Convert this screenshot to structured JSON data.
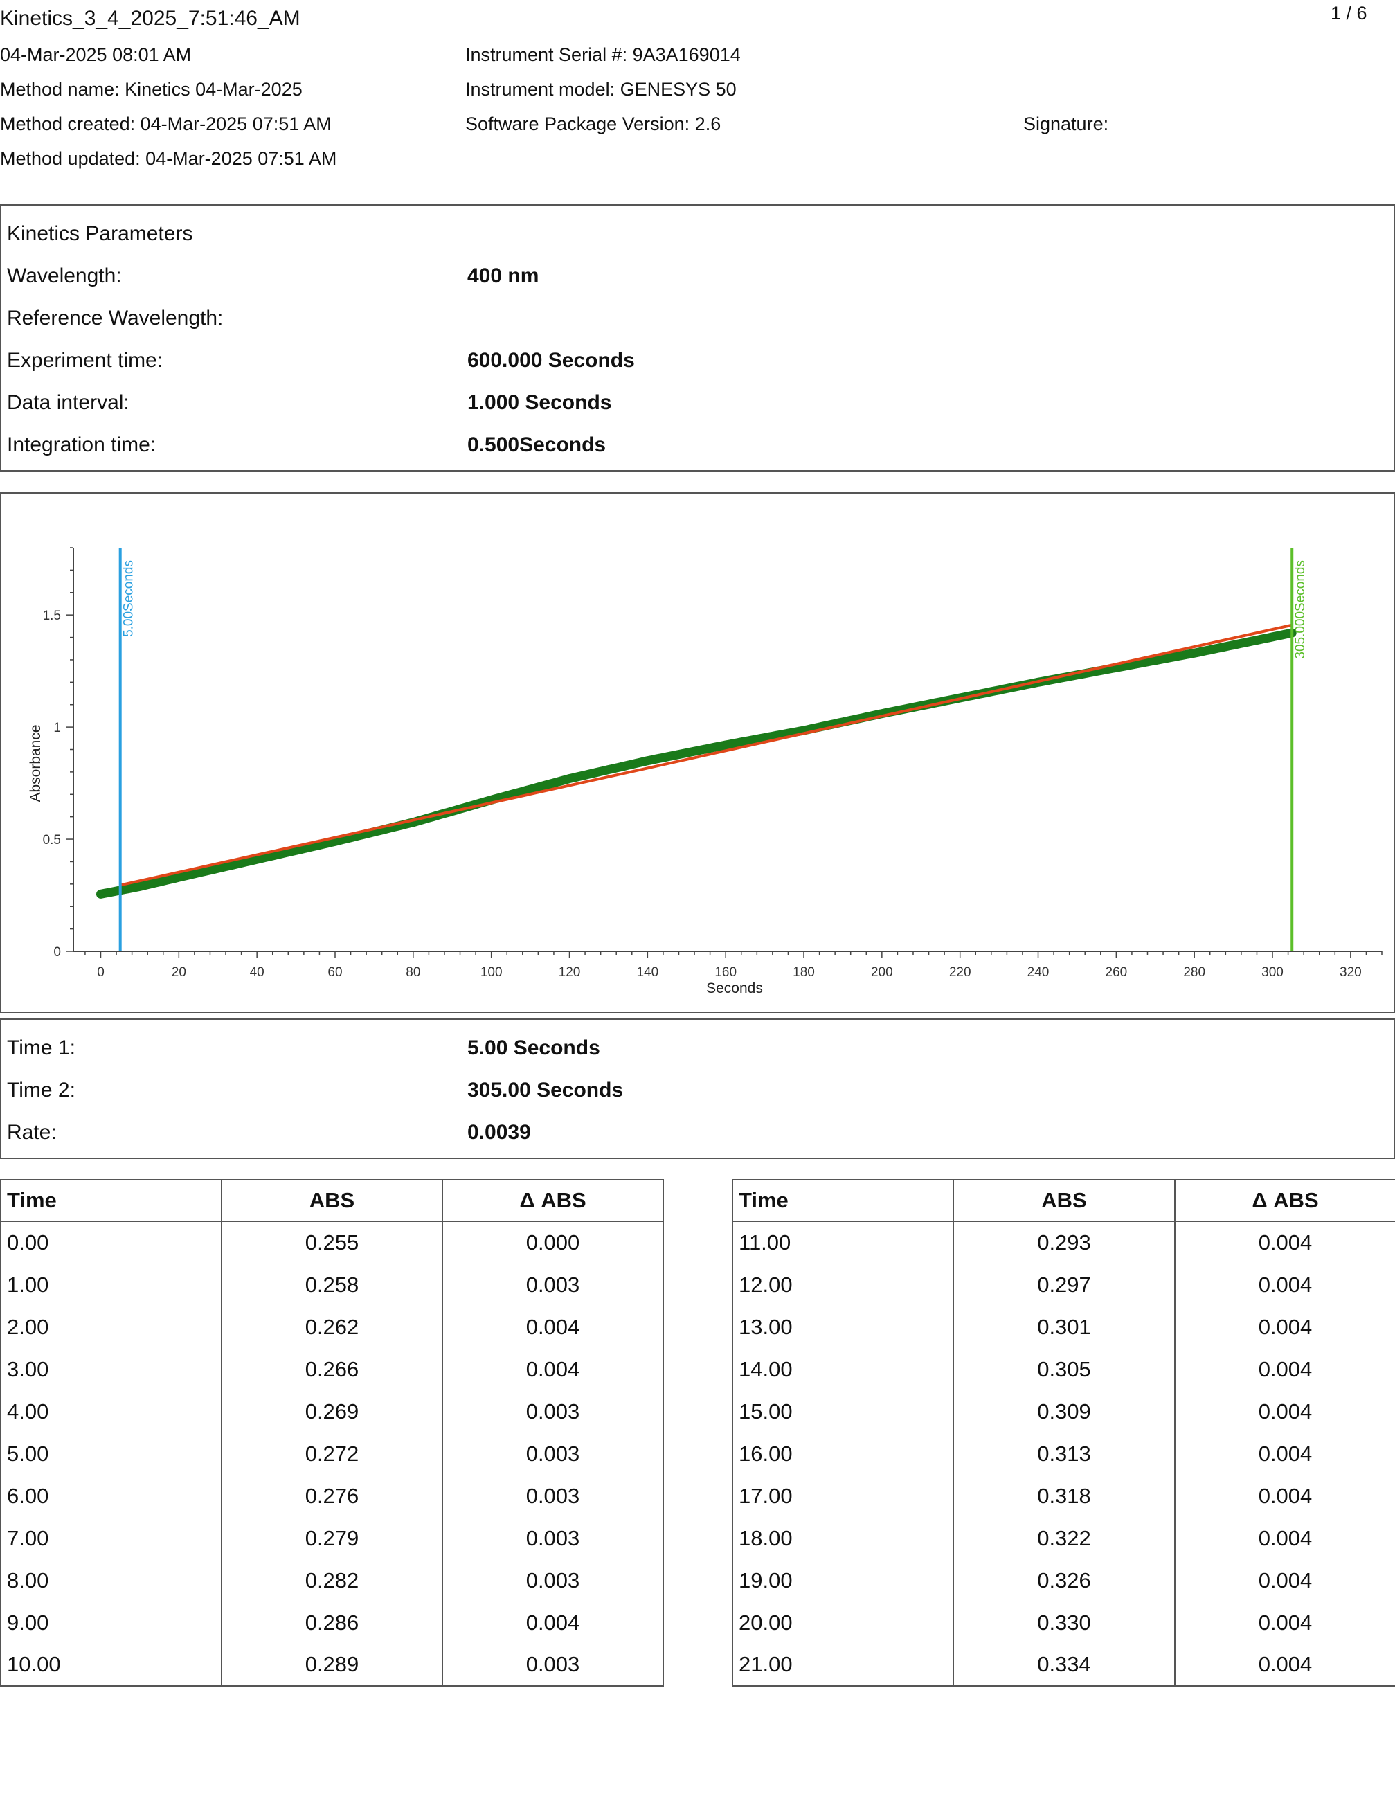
{
  "header": {
    "title": "Kinetics_3_4_2025_7:51:46_AM",
    "page_number": "1 / 6",
    "date": "04-Mar-2025 08:01 AM",
    "method_name": "Method name: Kinetics 04-Mar-2025",
    "method_created": "Method created: 04-Mar-2025 07:51 AM",
    "method_updated": "Method updated: 04-Mar-2025 07:51 AM",
    "instrument_serial": "Instrument Serial #: 9A3A169014",
    "instrument_model": "Instrument model: GENESYS 50",
    "software_version": "Software Package Version: 2.6",
    "signature": "Signature:"
  },
  "parameters": {
    "heading": "Kinetics Parameters",
    "wavelength_label": "Wavelength:",
    "wavelength_value": "400 nm",
    "reference_label": "Reference Wavelength:",
    "reference_value": "",
    "experiment_label": "Experiment time:",
    "experiment_value": "600.000 Seconds",
    "interval_label": "Data interval:",
    "interval_value": "1.000 Seconds",
    "integration_label": "Integration time:",
    "integration_value": "0.500Seconds"
  },
  "results": {
    "time1_label": "Time 1:",
    "time1_value": "5.00 Seconds",
    "time2_label": "Time 2:",
    "time2_value": "305.00 Seconds",
    "rate_label": "Rate:",
    "rate_value": "0.0039"
  },
  "chart_data": {
    "type": "scatter",
    "xlabel": "Seconds",
    "ylabel": "Absorbance",
    "xlim": [
      -7,
      328
    ],
    "ylim": [
      0,
      1.8
    ],
    "x_ticks": [
      0,
      20,
      40,
      60,
      80,
      100,
      120,
      140,
      160,
      180,
      200,
      220,
      240,
      260,
      280,
      300,
      320
    ],
    "y_ticks": [
      0,
      0.5,
      1,
      1.5
    ],
    "y_tick_labels": [
      "0",
      "0.5",
      "1",
      "1.5"
    ],
    "series_color": "#1a7a1a",
    "fit_color": "#e0471a",
    "data_keypoints": [
      [
        0,
        0.255
      ],
      [
        10,
        0.289
      ],
      [
        21,
        0.334
      ],
      [
        40,
        0.41
      ],
      [
        60,
        0.49
      ],
      [
        80,
        0.575
      ],
      [
        100,
        0.675
      ],
      [
        120,
        0.77
      ],
      [
        140,
        0.85
      ],
      [
        160,
        0.92
      ],
      [
        180,
        0.985
      ],
      [
        200,
        1.06
      ],
      [
        220,
        1.13
      ],
      [
        240,
        1.2
      ],
      [
        260,
        1.265
      ],
      [
        280,
        1.33
      ],
      [
        305,
        1.42
      ]
    ],
    "fit_line": {
      "x": [
        5,
        305
      ],
      "y": [
        0.295,
        1.455
      ]
    },
    "markers": [
      {
        "x": 5,
        "label": "5.00Seconds",
        "color": "#2aa0e0"
      },
      {
        "x": 305,
        "label": "305.000Seconds",
        "color": "#5cbf2a"
      }
    ]
  },
  "table_headers": {
    "time": "Time",
    "abs": "ABS",
    "delta": "Δ ABS"
  },
  "table_left": [
    [
      "0.00",
      "0.255",
      "0.000"
    ],
    [
      "1.00",
      "0.258",
      "0.003"
    ],
    [
      "2.00",
      "0.262",
      "0.004"
    ],
    [
      "3.00",
      "0.266",
      "0.004"
    ],
    [
      "4.00",
      "0.269",
      "0.003"
    ],
    [
      "5.00",
      "0.272",
      "0.003"
    ],
    [
      "6.00",
      "0.276",
      "0.003"
    ],
    [
      "7.00",
      "0.279",
      "0.003"
    ],
    [
      "8.00",
      "0.282",
      "0.003"
    ],
    [
      "9.00",
      "0.286",
      "0.004"
    ],
    [
      "10.00",
      "0.289",
      "0.003"
    ]
  ],
  "table_right": [
    [
      "11.00",
      "0.293",
      "0.004"
    ],
    [
      "12.00",
      "0.297",
      "0.004"
    ],
    [
      "13.00",
      "0.301",
      "0.004"
    ],
    [
      "14.00",
      "0.305",
      "0.004"
    ],
    [
      "15.00",
      "0.309",
      "0.004"
    ],
    [
      "16.00",
      "0.313",
      "0.004"
    ],
    [
      "17.00",
      "0.318",
      "0.004"
    ],
    [
      "18.00",
      "0.322",
      "0.004"
    ],
    [
      "19.00",
      "0.326",
      "0.004"
    ],
    [
      "20.00",
      "0.330",
      "0.004"
    ],
    [
      "21.00",
      "0.334",
      "0.004"
    ]
  ]
}
